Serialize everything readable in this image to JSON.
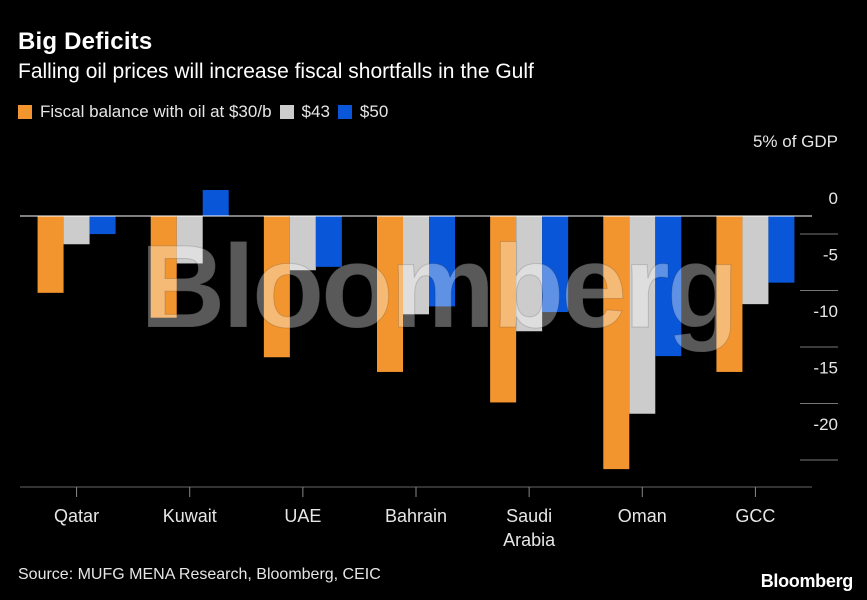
{
  "title": "Big Deficits",
  "subtitle": "Falling oil prices will increase fiscal shortfalls in the Gulf",
  "source": "Source: MUFG MENA Research, Bloomberg, CEIC",
  "brand": "Bloomberg",
  "watermark": "Bloomberg",
  "colors": {
    "s30": "#f2952f",
    "s43": "#cccccc",
    "s50": "#0a56d8",
    "background": "#000000"
  },
  "chart_data": {
    "type": "bar",
    "categories": [
      "Qatar",
      "Kuwait",
      "UAE",
      "Bahrain",
      "Saudi Arabia",
      "Oman",
      "GCC"
    ],
    "category_lines": [
      [
        "Qatar"
      ],
      [
        "Kuwait"
      ],
      [
        "UAE"
      ],
      [
        "Bahrain"
      ],
      [
        "Saudi",
        "Arabia"
      ],
      [
        "Oman"
      ],
      [
        "GCC"
      ]
    ],
    "series": [
      {
        "name": "Fiscal balance with oil at $30/b",
        "values": [
          -6.8,
          -9.0,
          -12.5,
          -13.8,
          -16.5,
          -22.4,
          -13.8
        ]
      },
      {
        "name": "$43",
        "values": [
          -2.5,
          -4.2,
          -4.8,
          -8.7,
          -10.2,
          -17.5,
          -7.8
        ]
      },
      {
        "name": "$50",
        "values": [
          -1.6,
          2.3,
          -4.5,
          -8.0,
          -8.5,
          -12.4,
          -5.9
        ]
      }
    ],
    "y_unit_label": "5% of GDP",
    "y_ticks": [
      0,
      -5,
      -10,
      -15,
      -20
    ],
    "y_tick_labels": [
      "0",
      "-5",
      "-10",
      "-15",
      "-20"
    ],
    "ylim": [
      -24,
      5
    ],
    "legend_position": "top-left",
    "grid": false
  }
}
